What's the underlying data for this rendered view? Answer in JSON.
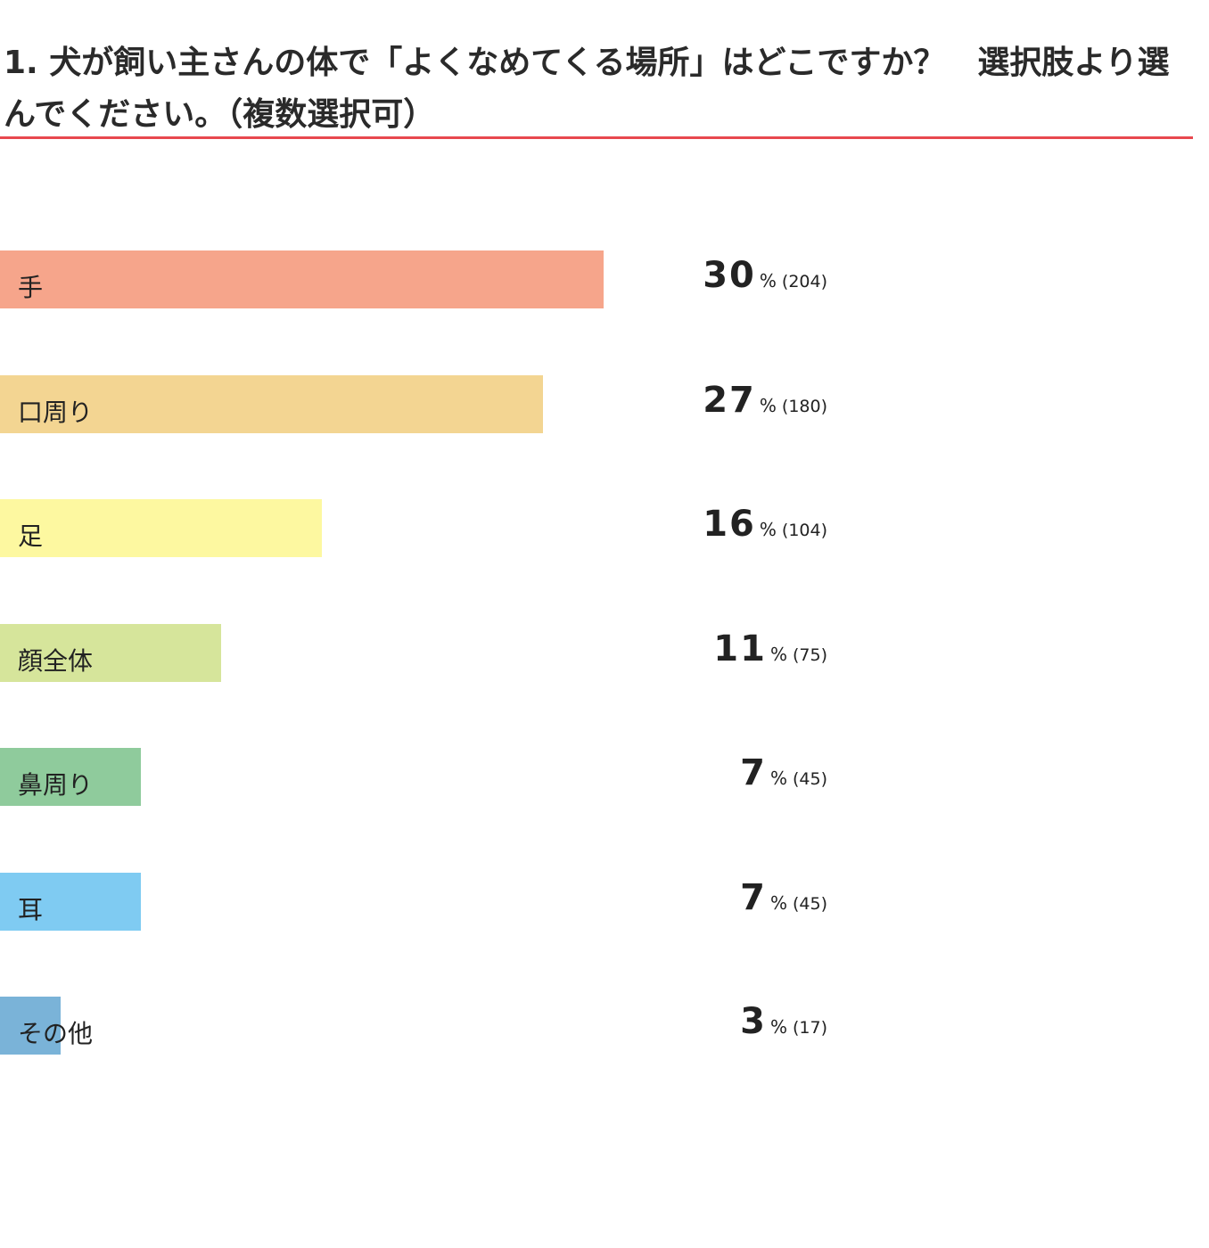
{
  "question": {
    "title": "1. 犬が飼い主さんの体で「よくなめてくる場所」はどこですか？　選択肢より選んでください。（複数選択可）"
  },
  "colors": {
    "accent_rule": "#e8484f"
  },
  "chart_data": {
    "type": "bar",
    "orientation": "horizontal",
    "title": "1. 犬が飼い主さんの体で「よくなめてくる場所」はどこですか？　選択肢より選んでください。（複数選択可）",
    "xlabel": "",
    "ylabel": "",
    "xlim": [
      0,
      30
    ],
    "grid": false,
    "value_unit": "%",
    "categories": [
      "手",
      "口周り",
      "足",
      "顔全体",
      "鼻周り",
      "耳",
      "その他"
    ],
    "values": [
      30,
      27,
      16,
      11,
      7,
      7,
      3
    ],
    "counts": [
      "(204)",
      "(180)",
      "(104)",
      "(75)",
      "(45)",
      "(45)",
      "(17)"
    ],
    "bar_colors": [
      "#f6a58b",
      "#f3d592",
      "#fdf8a0",
      "#d6e59b",
      "#8fcb9c",
      "#7fcbf2",
      "#7ab3d8"
    ]
  }
}
